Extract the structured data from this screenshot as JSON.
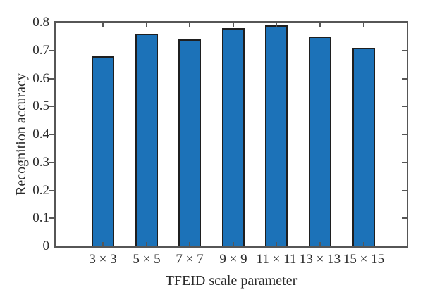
{
  "figure": {
    "kind": "static-plot"
  },
  "chart_data": {
    "type": "bar",
    "title": "",
    "categories": [
      "3 × 3",
      "5 × 5",
      "7 × 7",
      "9 × 9",
      "11 × 11",
      "13 × 13",
      "15 × 15"
    ],
    "values": [
      0.68,
      0.76,
      0.74,
      0.78,
      0.79,
      0.75,
      0.71
    ],
    "xlabel": "TFEID scale parameter",
    "ylabel": "Recognition accuracy",
    "ylim": [
      0,
      0.8
    ],
    "yticks": [
      0,
      0.1,
      0.2,
      0.3,
      0.4,
      0.5,
      0.6,
      0.7,
      0.8
    ],
    "grid": false,
    "legend": null,
    "bar_color": "#1c72b8",
    "bar_edge_color": "#1f1f1f",
    "axis_color": "#565656",
    "text_color": "#2b2b2b"
  }
}
